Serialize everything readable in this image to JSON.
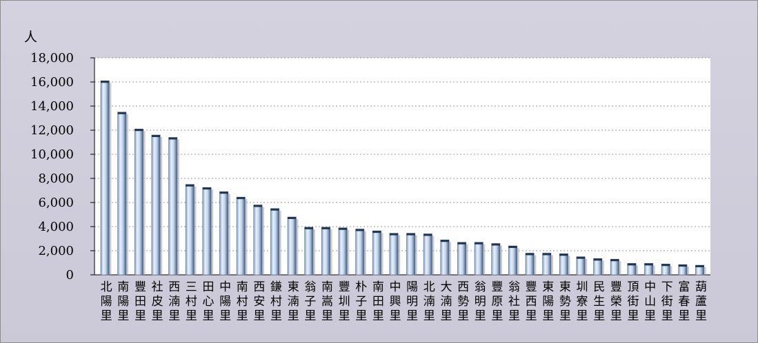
{
  "chart_data": {
    "type": "bar",
    "title": "",
    "ylabel": "人",
    "xlabel": "",
    "ylim": [
      0,
      18000
    ],
    "yticks": [
      0,
      2000,
      4000,
      6000,
      8000,
      10000,
      12000,
      14000,
      16000,
      18000
    ],
    "ytick_labels": [
      "0",
      "2,000",
      "4,000",
      "6,000",
      "8,000",
      "10,000",
      "12,000",
      "14,000",
      "16,000",
      "18,000"
    ],
    "grid": "horizontal dotted",
    "categories": [
      "北陽里",
      "南陽里",
      "豐田里",
      "社皮里",
      "西湳里",
      "三村里",
      "田心里",
      "中陽里",
      "南村里",
      "西安里",
      "鎌村里",
      "東湳里",
      "翁子里",
      "南嵩里",
      "豐圳里",
      "朴子里",
      "南田里",
      "中興里",
      "陽明里",
      "北湳里",
      "大湳里",
      "西勢里",
      "翁明里",
      "豐原里",
      "翁社里",
      "豐西里",
      "東陽里",
      "東勢里",
      "圳寮里",
      "民生里",
      "豐榮里",
      "頂街里",
      "中山里",
      "下街里",
      "富春里",
      "葫蘆里"
    ],
    "values": [
      16100,
      13500,
      12100,
      11600,
      11400,
      7500,
      7250,
      6900,
      6450,
      5800,
      5500,
      4800,
      3950,
      3950,
      3900,
      3800,
      3650,
      3450,
      3450,
      3400,
      2900,
      2700,
      2700,
      2600,
      2400,
      1800,
      1800,
      1750,
      1500,
      1350,
      1300,
      950,
      950,
      900,
      850,
      800
    ],
    "colors": {
      "bar_light": "#e8f0fa",
      "bar_mid": "#b8cde6",
      "bar_dark": "#3d5a80",
      "bar_top": "#1f3550",
      "plot_bg": "#ffffff",
      "grid": "#9a9a9a"
    }
  }
}
